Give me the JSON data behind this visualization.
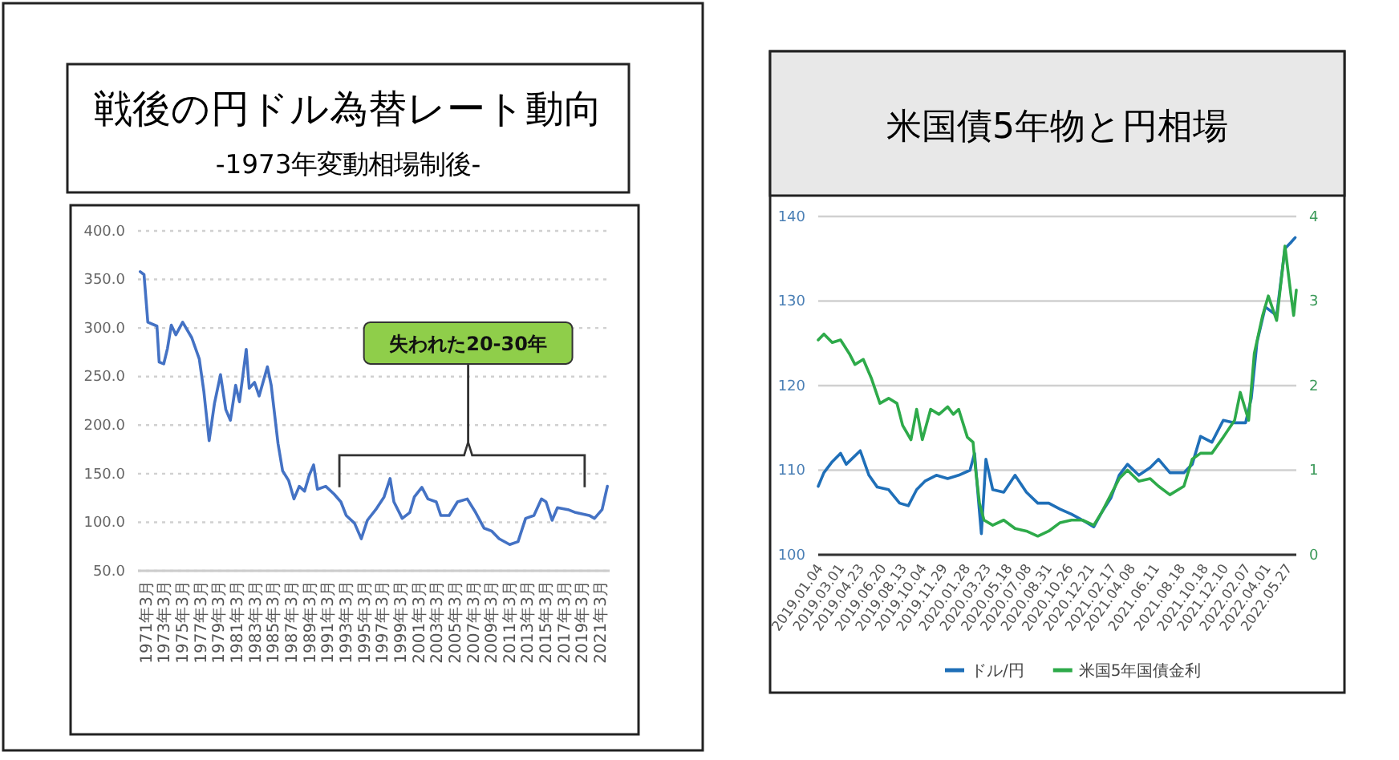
{
  "chart_data": [
    {
      "type": "line",
      "title": "戦後の円ドル為替レート動向",
      "subtitle": "-1973年変動相場制後-",
      "x": [
        "1971-03",
        "1971-08",
        "1972-01",
        "1973-01",
        "1973-04",
        "1973-10",
        "1974-03",
        "1974-08",
        "1975-02",
        "1975-11",
        "1976-11",
        "1977-09",
        "1978-03",
        "1978-10",
        "1979-05",
        "1980-01",
        "1980-08",
        "1981-02",
        "1981-09",
        "1982-02",
        "1982-11",
        "1983-03",
        "1983-10",
        "1984-04",
        "1985-03",
        "1985-08",
        "1986-05",
        "1986-11",
        "1987-07",
        "1988-02",
        "1988-09",
        "1989-04",
        "1989-10",
        "1990-04",
        "1990-09",
        "1991-08",
        "1992-07",
        "1993-04",
        "1993-11",
        "1994-10",
        "1995-07",
        "1996-03",
        "1997-02",
        "1998-01",
        "1998-09",
        "1999-02",
        "2000-01",
        "2000-11",
        "2001-05",
        "2002-03",
        "2002-11",
        "2003-10",
        "2004-04",
        "2005-03",
        "2006-02",
        "2007-03",
        "2008-02",
        "2009-01",
        "2009-11",
        "2010-09",
        "2011-11",
        "2012-10",
        "2013-08",
        "2014-07",
        "2015-05",
        "2015-11",
        "2016-07",
        "2017-02",
        "2018-04",
        "2019-02",
        "2020-08",
        "2021-03",
        "2022-01",
        "2022-08"
      ],
      "series": [
        {
          "color": "#4472c4",
          "values": [
            358,
            355,
            306,
            302,
            265,
            263,
            279,
            303,
            293,
            306,
            290,
            268,
            235,
            184,
            222,
            252,
            216,
            205,
            241,
            224,
            278,
            238,
            244,
            230,
            260,
            241,
            181,
            153,
            143,
            124,
            137,
            132,
            148,
            159,
            134,
            137,
            129,
            121,
            107,
            99,
            83,
            102,
            113,
            126,
            145,
            121,
            104,
            110,
            126,
            136,
            124,
            121,
            107,
            107,
            121,
            124,
            110,
            94,
            91,
            83,
            77,
            80,
            104,
            107,
            124,
            121,
            102,
            115,
            113,
            110,
            107,
            104,
            113,
            137
          ]
        }
      ],
      "xlim": [
        "1970-12",
        "2022-11"
      ],
      "xticks": [
        {
          "value": "1971-03",
          "label": "1971年3月"
        },
        {
          "value": "1973-03",
          "label": "1973年3月"
        },
        {
          "value": "1975-03",
          "label": "1975年3月"
        },
        {
          "value": "1977-03",
          "label": "1977年3月"
        },
        {
          "value": "1979-03",
          "label": "1979年3月"
        },
        {
          "value": "1981-03",
          "label": "1981年3月"
        },
        {
          "value": "1983-03",
          "label": "1983年3月"
        },
        {
          "value": "1985-03",
          "label": "1985年3月"
        },
        {
          "value": "1987-03",
          "label": "1987年3月"
        },
        {
          "value": "1989-03",
          "label": "1989年3月"
        },
        {
          "value": "1991-03",
          "label": "1991年3月"
        },
        {
          "value": "1993-03",
          "label": "1993年3月"
        },
        {
          "value": "1995-03",
          "label": "1995年3月"
        },
        {
          "value": "1997-03",
          "label": "1997年3月"
        },
        {
          "value": "1999-03",
          "label": "1999年3月"
        },
        {
          "value": "2001-03",
          "label": "2001年3月"
        },
        {
          "value": "2003-03",
          "label": "2003年3月"
        },
        {
          "value": "2005-03",
          "label": "2005年3月"
        },
        {
          "value": "2007-03",
          "label": "2007年3月"
        },
        {
          "value": "2009-03",
          "label": "2009年3月"
        },
        {
          "value": "2011-03",
          "label": "2011年3月"
        },
        {
          "value": "2013-03",
          "label": "2013年3月"
        },
        {
          "value": "2015-03",
          "label": "2015年3月"
        },
        {
          "value": "2017-03",
          "label": "2017年3月"
        },
        {
          "value": "2019-03",
          "label": "2019年3月"
        },
        {
          "value": "2021-03",
          "label": "2021年3月"
        }
      ],
      "ylim": [
        50,
        400
      ],
      "yticks": [
        {
          "value": 50,
          "label": "50.0"
        },
        {
          "value": 100,
          "label": "100.0"
        },
        {
          "value": 150,
          "label": "150.0"
        },
        {
          "value": 200,
          "label": "200.0"
        },
        {
          "value": 250,
          "label": "250.0"
        },
        {
          "value": 300,
          "label": "300.0"
        },
        {
          "value": 350,
          "label": "350.0"
        },
        {
          "value": 400,
          "label": "400.0"
        }
      ],
      "grid": "y",
      "legend": false,
      "annotations": [
        "失われた20-30年"
      ]
    },
    {
      "type": "line",
      "title": "米国債5年物と円相場",
      "x": [
        "2019-01-04",
        "2019-01-19",
        "2019-02-10",
        "2019-03-04",
        "2019-03-19",
        "2019-04-25",
        "2019-05-18",
        "2019-06-09",
        "2019-07-09",
        "2019-08-07",
        "2019-08-30",
        "2019-09-21",
        "2019-10-13",
        "2019-11-12",
        "2019-12-12",
        "2020-01-10",
        "2020-02-09",
        "2020-02-21",
        "2020-03-03",
        "2020-03-10",
        "2020-03-22",
        "2020-04-09",
        "2020-05-08",
        "2020-06-07",
        "2020-07-07",
        "2020-08-06",
        "2020-09-04",
        "2020-10-04",
        "2020-11-03",
        "2020-12-02",
        "2021-01-01",
        "2021-01-23",
        "2021-02-15",
        "2021-03-09",
        "2021-03-31",
        "2021-04-30",
        "2021-05-30",
        "2021-06-21",
        "2021-07-21",
        "2021-08-27",
        "2021-09-18",
        "2021-10-10",
        "2021-11-09",
        "2021-12-09",
        "2022-01-08",
        "2022-02-06",
        "2022-02-21",
        "2022-03-08",
        "2022-03-30",
        "2022-04-29",
        "2022-05-21",
        "2022-06-05",
        "2022-06-17"
      ],
      "series": [
        {
          "name": "ドル/円",
          "color": "#1f6fb8",
          "values": [
            108.1,
            109.7,
            111.0,
            112.0,
            110.7,
            112.3,
            109.4,
            108.0,
            107.7,
            106.1,
            105.8,
            107.7,
            108.7,
            109.4,
            109.0,
            109.4,
            110.0,
            112.0,
            106.1,
            102.5,
            111.3,
            107.7,
            107.4,
            109.4,
            107.4,
            106.1,
            106.1,
            105.4,
            104.8,
            104.1,
            103.3,
            105.1,
            106.7,
            109.4,
            110.7,
            109.4,
            110.3,
            111.3,
            109.7,
            109.7,
            110.7,
            114.0,
            113.3,
            115.9,
            115.6,
            115.6,
            118.5,
            125.1,
            129.3,
            128.3,
            136.2,
            136.9,
            137.5
          ]
        },
        {
          "name": "米国5年国債金利",
          "color": "#2eaa4a",
          "axis": "y2",
          "x": [
            "2019-01-04",
            "2019-01-19",
            "2019-02-10",
            "2019-03-04",
            "2019-03-27",
            "2019-04-11",
            "2019-05-03",
            "2019-05-25",
            "2019-06-16",
            "2019-07-09",
            "2019-07-31",
            "2019-08-15",
            "2019-09-06",
            "2019-09-21",
            "2019-10-06",
            "2019-10-28",
            "2019-11-19",
            "2019-12-12",
            "2019-12-27",
            "2020-01-10",
            "2020-02-02",
            "2020-02-17",
            "2020-02-24",
            "2020-03-05",
            "2020-03-17",
            "2020-04-09",
            "2020-05-08",
            "2020-06-07",
            "2020-07-07",
            "2020-08-06",
            "2020-09-04",
            "2020-10-04",
            "2020-11-03",
            "2020-12-02",
            "2021-01-01",
            "2021-01-23",
            "2021-02-15",
            "2021-03-09",
            "2021-03-31",
            "2021-04-30",
            "2021-05-30",
            "2021-06-21",
            "2021-07-21",
            "2021-08-27",
            "2021-09-18",
            "2021-10-10",
            "2021-11-09",
            "2021-12-09",
            "2022-01-08",
            "2022-01-23",
            "2022-02-14",
            "2022-03-01",
            "2022-03-23",
            "2022-04-07",
            "2022-04-29",
            "2022-05-14",
            "2022-05-21",
            "2022-06-05",
            "2022-06-13",
            "2022-06-20"
          ],
          "values": [
            2.54,
            2.61,
            2.51,
            2.54,
            2.38,
            2.25,
            2.31,
            2.08,
            1.79,
            1.85,
            1.79,
            1.53,
            1.36,
            1.72,
            1.36,
            1.72,
            1.66,
            1.75,
            1.66,
            1.72,
            1.39,
            1.33,
            1.0,
            0.61,
            0.41,
            0.35,
            0.41,
            0.31,
            0.28,
            0.22,
            0.28,
            0.38,
            0.41,
            0.41,
            0.35,
            0.51,
            0.71,
            0.9,
            1.0,
            0.87,
            0.9,
            0.81,
            0.71,
            0.81,
            1.13,
            1.2,
            1.2,
            1.39,
            1.59,
            1.92,
            1.59,
            2.38,
            2.83,
            3.06,
            2.77,
            3.36,
            3.65,
            3.1,
            2.83,
            3.13
          ]
        }
      ],
      "xlim": [
        "2019-01-04",
        "2022-06-20"
      ],
      "xticks": [
        {
          "value": "2019-01-04",
          "label": "2019.01.04"
        },
        {
          "value": "2019-03-01",
          "label": "2019.03.01"
        },
        {
          "value": "2019-04-23",
          "label": "2019.04.23"
        },
        {
          "value": "2019-06-20",
          "label": "2019.06.20"
        },
        {
          "value": "2019-08-13",
          "label": "2019.08.13"
        },
        {
          "value": "2019-10-04",
          "label": "2019.10.04"
        },
        {
          "value": "2019-11-29",
          "label": "2019.11.29"
        },
        {
          "value": "2020-01-28",
          "label": "2020.01.28"
        },
        {
          "value": "2020-03-23",
          "label": "2020.03.23"
        },
        {
          "value": "2020-05-18",
          "label": "2020.05.18"
        },
        {
          "value": "2020-07-08",
          "label": "2020.07.08"
        },
        {
          "value": "2020-08-31",
          "label": "2020.08.31"
        },
        {
          "value": "2020-10-26",
          "label": "2020.10.26"
        },
        {
          "value": "2020-12-21",
          "label": "2020.12.21"
        },
        {
          "value": "2021-02-17",
          "label": "2021.02.17"
        },
        {
          "value": "2021-04-08",
          "label": "2021.04.08"
        },
        {
          "value": "2021-06-11",
          "label": "2021.06.11"
        },
        {
          "value": "2021-08-18",
          "label": "2021.08.18"
        },
        {
          "value": "2021-10-18",
          "label": "2021.10.18"
        },
        {
          "value": "2021-12-10",
          "label": "2021.12.10"
        },
        {
          "value": "2022-02-07",
          "label": "2022.02.07"
        },
        {
          "value": "2022-04-01",
          "label": "2022.04.01"
        },
        {
          "value": "2022-05-27",
          "label": "2022.05.27"
        }
      ],
      "ylim": [
        100,
        140
      ],
      "yticks": [
        100,
        110,
        120,
        130,
        140
      ],
      "y2lim": [
        0,
        4
      ],
      "y2ticks": [
        0,
        1,
        2,
        3,
        4
      ],
      "grid": "y",
      "legend": "bottom"
    }
  ]
}
